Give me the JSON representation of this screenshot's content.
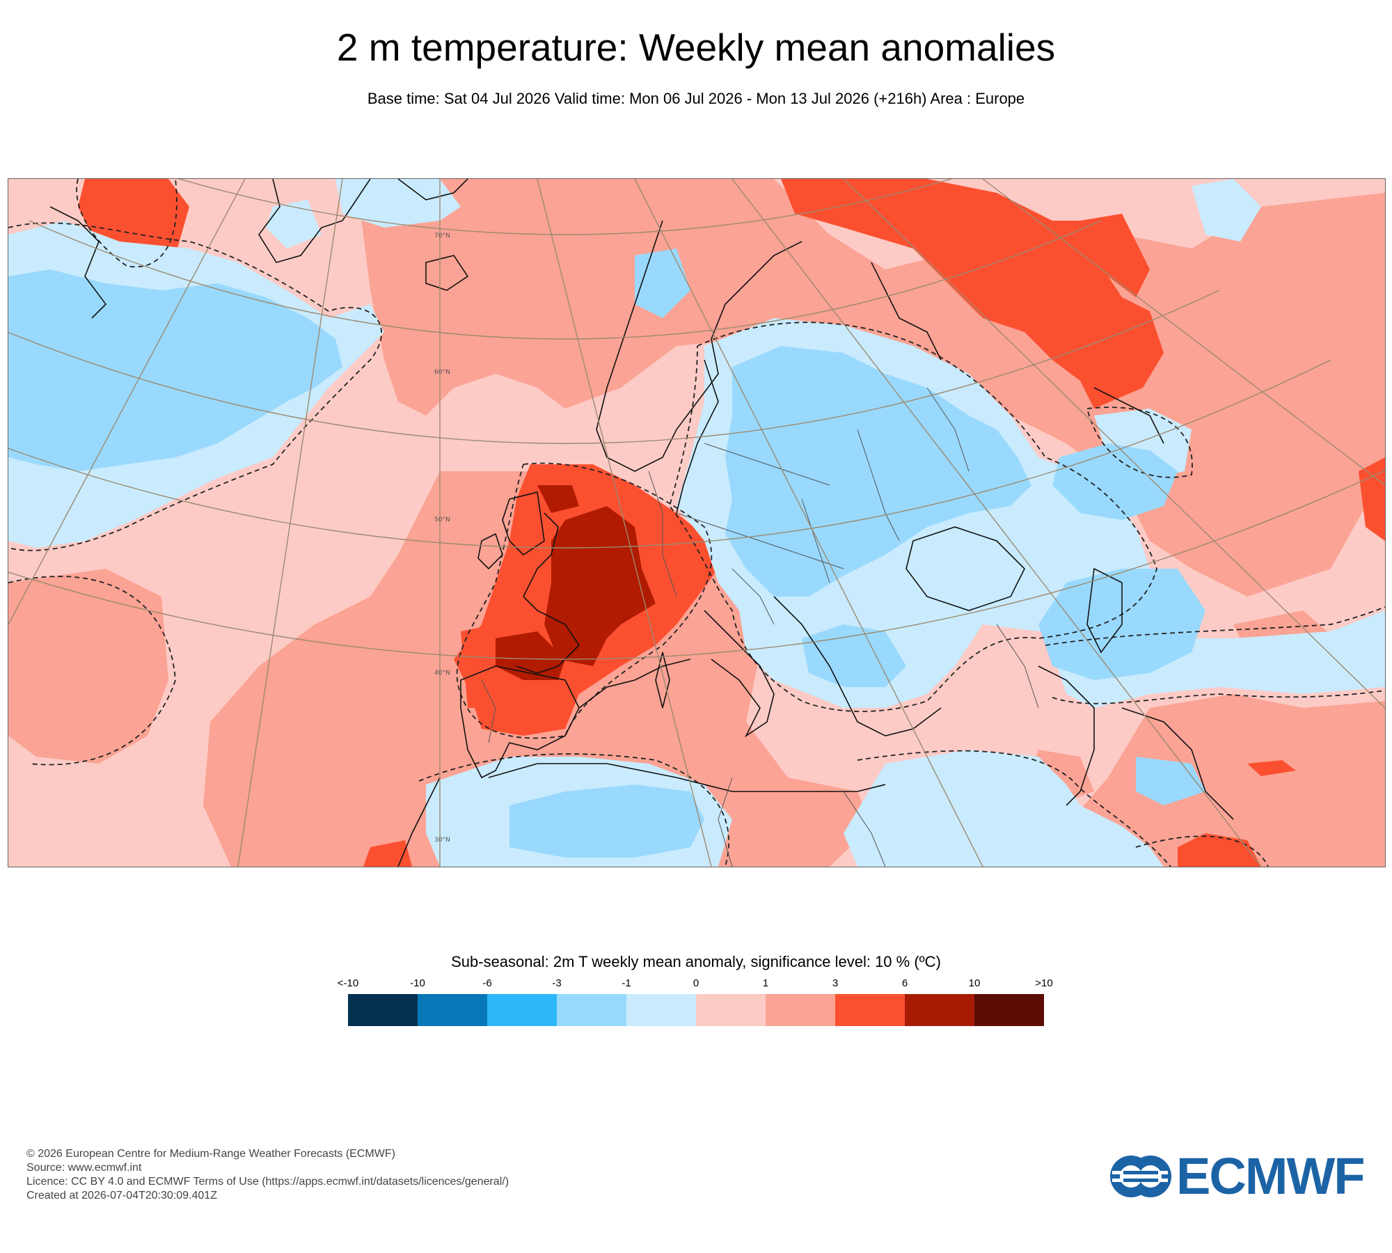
{
  "header": {
    "title": "2 m temperature: Weekly mean anomalies",
    "subtitle": "Base time: Sat 04 Jul 2026 Valid time: Mon 06 Jul 2026 - Mon 13 Jul 2026 (+216h) Area : Europe"
  },
  "map": {
    "area": "Europe",
    "latitude_labels": [
      "70°N",
      "60°N",
      "50°N",
      "40°N",
      "30°N"
    ],
    "contour_style": "dashed black significance contour"
  },
  "legend": {
    "title": "Sub-seasonal: 2m T weekly mean anomaly, significance level: 10 % (ºC)",
    "ticks": [
      "<-10",
      "-10",
      "-6",
      "-3",
      "-1",
      "0",
      "1",
      "3",
      "6",
      "10",
      ">10"
    ],
    "colors": [
      "#04314f",
      "#0877b9",
      "#2db7fb",
      "#99d9fd",
      "#c9ebfd",
      "#fdcbc6",
      "#fba394",
      "#fb5030",
      "#a71b03",
      "#5c0d03"
    ]
  },
  "footer": {
    "copyright": "© 2026 European Centre for Medium-Range Weather Forecasts (ECMWF)",
    "source": "Source: www.ecmwf.int",
    "licence": "Licence: CC BY 4.0 and ECMWF Terms of Use (https://apps.ecmwf.int/datasets/licences/general/)",
    "created": "Created at 2026-07-04T20:30:09.401Z"
  },
  "logo": {
    "text": "ECMWF",
    "color": "#1c63a6"
  }
}
